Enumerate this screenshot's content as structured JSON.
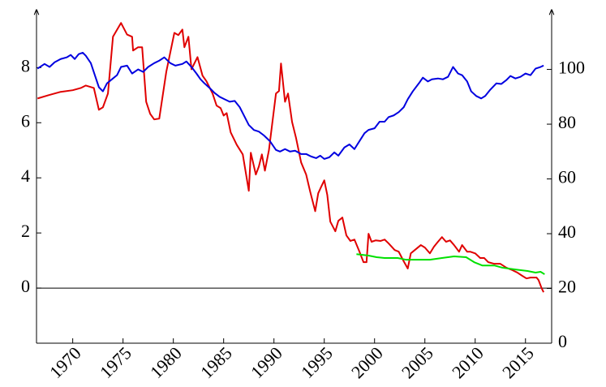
{
  "chart_data": {
    "type": "line",
    "xlim": [
      1966.4,
      2017.6
    ],
    "xticks": [
      1970,
      1975,
      1980,
      1985,
      1990,
      1995,
      2000,
      2005,
      2010,
      2015
    ],
    "ylim": [
      -2,
      10.1
    ],
    "yticks": [
      0,
      2,
      4,
      6,
      8
    ],
    "y2lim": [
      0,
      121.8
    ],
    "y2ticks": [
      0,
      20,
      40,
      60,
      80,
      100
    ],
    "hline": 0,
    "series": [
      {
        "color": "#e00000",
        "x": [
          1966.5,
          1967.6,
          1968.8,
          1970.0,
          1970.8,
          1971.3,
          1972.1,
          1972.6,
          1973.0,
          1973.5,
          1974.0,
          1974.8,
          1975.4,
          1975.9,
          1976.0,
          1976.5,
          1976.9,
          1977.3,
          1977.7,
          1978.1,
          1978.6,
          1979.3,
          1980.1,
          1980.5,
          1980.9,
          1981.1,
          1981.5,
          1981.8,
          1982.4,
          1982.9,
          1983.3,
          1983.9,
          1984.3,
          1984.7,
          1985.0,
          1985.3,
          1985.7,
          1986.3,
          1986.9,
          1987.5,
          1987.7,
          1988.2,
          1988.5,
          1988.8,
          1989.1,
          1989.5,
          1990.2,
          1990.5,
          1990.7,
          1991.1,
          1991.4,
          1991.8,
          1992.2,
          1992.7,
          1993.2,
          1993.6,
          1994.1,
          1994.4,
          1994.7,
          1995.0,
          1995.3,
          1995.6,
          1996.1,
          1996.4,
          1996.8,
          1997.2,
          1997.6,
          1998.0,
          1998.5,
          1998.9,
          1999.2,
          1999.4,
          1999.7,
          2000.1,
          2000.6,
          2001.0,
          2001.4,
          2002.0,
          2002.4,
          2002.9,
          2003.3,
          2003.6,
          2004.0,
          2004.6,
          2005.0,
          2005.5,
          2005.9,
          2006.3,
          2006.7,
          2007.1,
          2007.5,
          2007.9,
          2008.4,
          2008.7,
          2009.2,
          2009.5,
          2010.0,
          2010.5,
          2010.9,
          2011.3,
          2011.9,
          2012.5,
          2013.1,
          2013.7,
          2014.2,
          2014.7,
          2015.1,
          2015.5,
          2016.1,
          2016.3,
          2016.6,
          2016.8
        ],
        "values": [
          6.88,
          7.0,
          7.12,
          7.18,
          7.26,
          7.35,
          7.26,
          6.47,
          6.56,
          7.06,
          9.12,
          9.62,
          9.2,
          9.12,
          8.62,
          8.74,
          8.74,
          6.76,
          6.32,
          6.12,
          6.15,
          7.85,
          9.26,
          9.18,
          9.38,
          8.74,
          9.12,
          7.94,
          8.38,
          7.71,
          7.5,
          7.06,
          6.62,
          6.53,
          6.26,
          6.35,
          5.65,
          5.2,
          4.85,
          3.53,
          4.91,
          4.12,
          4.41,
          4.85,
          4.26,
          5.0,
          7.06,
          7.15,
          8.15,
          6.76,
          7.06,
          6.03,
          5.44,
          4.56,
          4.12,
          3.5,
          2.79,
          3.44,
          3.68,
          3.91,
          3.38,
          2.41,
          2.06,
          2.44,
          2.56,
          1.91,
          1.71,
          1.76,
          1.32,
          0.94,
          0.94,
          1.97,
          1.68,
          1.73,
          1.71,
          1.76,
          1.62,
          1.38,
          1.32,
          0.97,
          0.71,
          1.26,
          1.38,
          1.56,
          1.47,
          1.26,
          1.5,
          1.68,
          1.85,
          1.68,
          1.73,
          1.56,
          1.32,
          1.56,
          1.32,
          1.32,
          1.26,
          1.09,
          1.09,
          0.94,
          0.88,
          0.88,
          0.74,
          0.65,
          0.56,
          0.44,
          0.35,
          0.38,
          0.38,
          0.29,
          0,
          -0.15
        ]
      },
      {
        "color": "#0000e0",
        "axis": "y2",
        "x": [
          1966.5,
          1967.2,
          1967.7,
          1968.2,
          1968.8,
          1969.4,
          1969.8,
          1970.2,
          1970.6,
          1971.0,
          1971.3,
          1971.8,
          1972.2,
          1972.6,
          1973.0,
          1973.4,
          1973.9,
          1974.4,
          1974.8,
          1975.4,
          1975.9,
          1976.5,
          1977.0,
          1977.5,
          1978.1,
          1978.6,
          1979.1,
          1979.7,
          1980.2,
          1980.9,
          1981.3,
          1981.8,
          1982.3,
          1982.7,
          1983.1,
          1983.7,
          1984.1,
          1984.6,
          1985.1,
          1985.6,
          1986.1,
          1986.6,
          1987.1,
          1987.5,
          1988.0,
          1988.5,
          1989.0,
          1989.6,
          1990.2,
          1990.6,
          1991.1,
          1991.6,
          1992.1,
          1992.7,
          1993.2,
          1993.7,
          1994.2,
          1994.6,
          1995.0,
          1995.5,
          1996.0,
          1996.4,
          1997.0,
          1997.5,
          1998.0,
          1998.5,
          1999.0,
          1999.4,
          2000.0,
          2000.5,
          2001.0,
          2001.4,
          2001.9,
          2002.4,
          2002.9,
          2003.3,
          2003.8,
          2004.4,
          2004.8,
          2005.3,
          2005.7,
          2006.3,
          2006.8,
          2007.3,
          2007.8,
          2008.3,
          2008.7,
          2009.2,
          2009.6,
          2010.1,
          2010.6,
          2011.0,
          2011.5,
          2012.1,
          2012.6,
          2013.1,
          2013.5,
          2014.0,
          2014.5,
          2015.0,
          2015.5,
          2016.0,
          2016.5,
          2016.8
        ],
        "values": [
          100.3,
          102.0,
          100.9,
          102.6,
          103.8,
          104.4,
          105.3,
          103.8,
          105.6,
          106.1,
          105.0,
          102.3,
          97.9,
          93.5,
          92.0,
          94.9,
          96.4,
          97.9,
          100.9,
          101.4,
          98.5,
          100.0,
          99.1,
          100.9,
          102.3,
          103.2,
          104.4,
          102.3,
          101.4,
          102.0,
          102.9,
          100.9,
          98.5,
          96.4,
          94.9,
          92.9,
          91.4,
          90.0,
          89.1,
          88.2,
          88.5,
          86.2,
          82.6,
          79.7,
          77.9,
          77.3,
          75.9,
          73.8,
          70.6,
          70.0,
          70.9,
          70.0,
          70.3,
          69.1,
          69.1,
          68.2,
          67.6,
          68.5,
          67.3,
          67.9,
          69.7,
          68.5,
          71.5,
          72.6,
          70.9,
          73.8,
          76.7,
          77.9,
          78.5,
          80.9,
          80.9,
          82.6,
          83.2,
          84.4,
          86.2,
          89.1,
          92.0,
          94.9,
          97.0,
          95.6,
          96.4,
          96.7,
          96.4,
          97.3,
          100.9,
          98.5,
          97.9,
          95.6,
          92.0,
          90.3,
          89.4,
          90.3,
          92.6,
          94.9,
          94.7,
          96.1,
          97.6,
          96.7,
          97.3,
          98.5,
          97.9,
          100.3,
          100.9,
          101.4
        ]
      },
      {
        "color": "#00e000",
        "x": [
          1998.2,
          1999.4,
          2000.2,
          2001.0,
          2002.3,
          2003.1,
          2004.3,
          2005.5,
          2006.7,
          2007.9,
          2009.1,
          2009.9,
          2010.7,
          2011.9,
          2012.7,
          2013.9,
          2015.2,
          2016.0,
          2016.5,
          2016.9
        ],
        "values": [
          1.23,
          1.18,
          1.12,
          1.09,
          1.09,
          1.03,
          1.03,
          1.03,
          1.09,
          1.15,
          1.12,
          0.94,
          0.82,
          0.82,
          0.74,
          0.68,
          0.62,
          0.56,
          0.59,
          0.5
        ]
      }
    ]
  }
}
